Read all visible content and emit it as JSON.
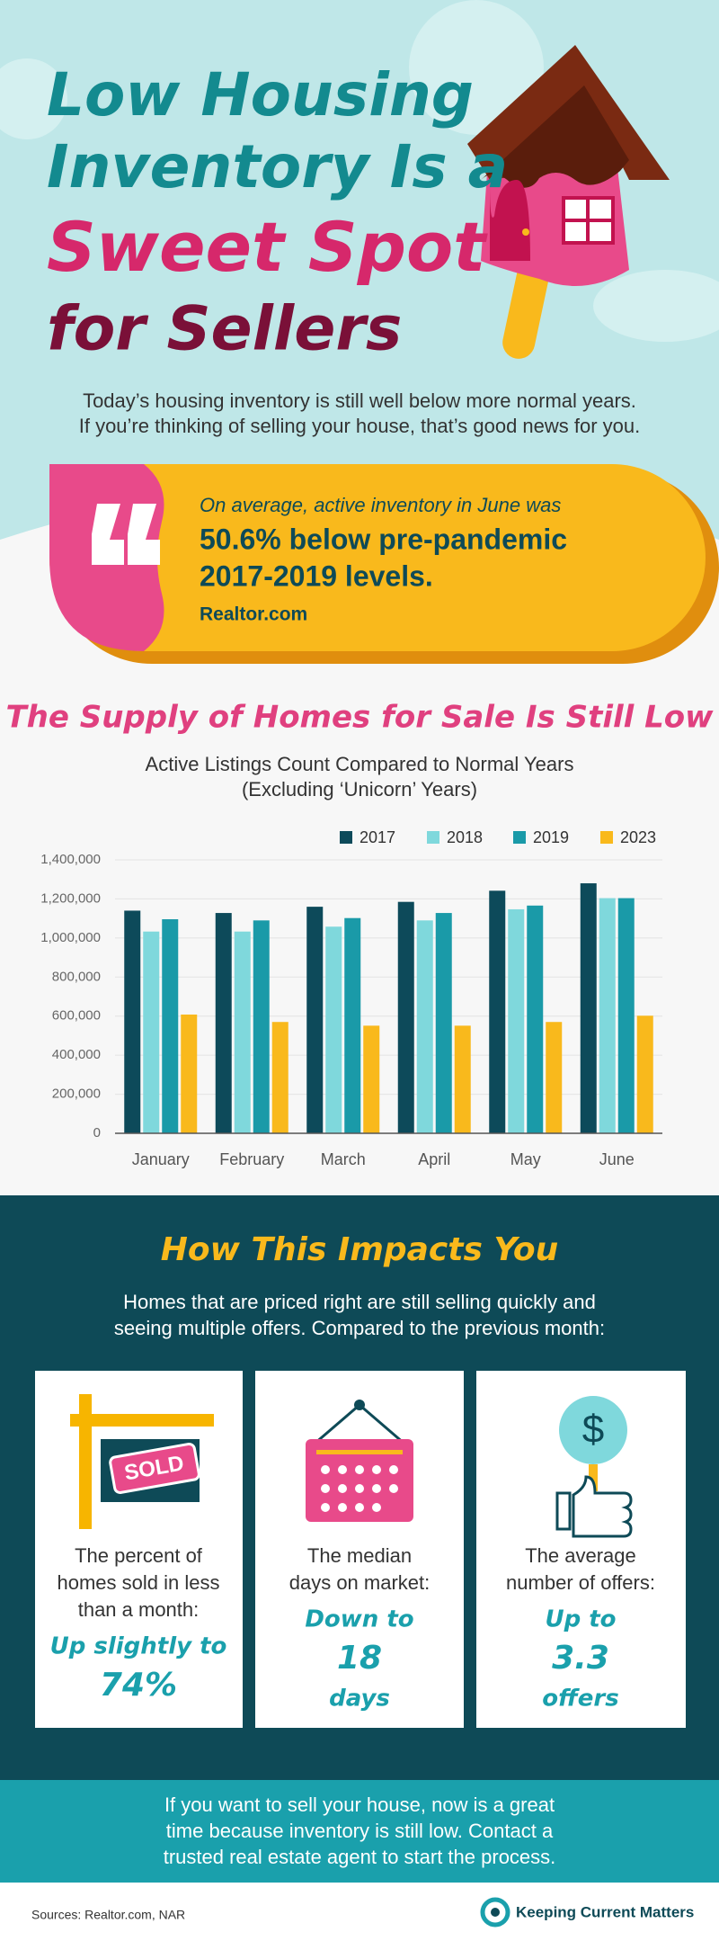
{
  "header": {
    "title_lines": [
      "Low Housing",
      "Inventory Is a",
      "Sweet Spot",
      "for Sellers"
    ],
    "intro_lines": [
      "Today’s housing inventory is still well below more normal years.",
      "If you’re thinking of selling your house, that’s good news for you."
    ]
  },
  "quote": {
    "text": "On average, active inventory in June was",
    "highlight_lines": [
      "50.6% below pre-pandemic",
      "2017-2019 levels."
    ],
    "source": "Realtor.com"
  },
  "chart_data": {
    "type": "bar",
    "title": "The Supply of Homes for Sale Is Still Low",
    "subtitle": "Active Listings Count Compared to Normal Years",
    "subtitle_note": "(Excluding ‘Unicorn’ Years)",
    "categories": [
      "January",
      "February",
      "March",
      "April",
      "May",
      "June"
    ],
    "series": [
      {
        "name": "2017",
        "color": "#0d4a5a",
        "values": [
          1140000,
          1128000,
          1160000,
          1185000,
          1242000,
          1280000
        ]
      },
      {
        "name": "2018",
        "color": "#7fd8dc",
        "values": [
          1033000,
          1033000,
          1058000,
          1090000,
          1147000,
          1204000
        ]
      },
      {
        "name": "2019",
        "color": "#1a9aa8",
        "values": [
          1096000,
          1090000,
          1102000,
          1128000,
          1166000,
          1204000
        ]
      },
      {
        "name": "2023",
        "color": "#f9b91c",
        "values": [
          608000,
          570000,
          551000,
          551000,
          570000,
          602000
        ]
      }
    ],
    "ylim": [
      0,
      1400000
    ],
    "yticks": [
      0,
      {
        "value": 200000,
        "label": "200,000"
      },
      {
        "value": 400000,
        "label": "400,000"
      },
      {
        "value": 600000,
        "label": "600,000"
      },
      {
        "value": 800000,
        "label": "800,000"
      },
      {
        "value": 1000000,
        "label": "1,000,000"
      },
      {
        "value": 1200000,
        "label": "1,200,000"
      },
      {
        "value": 1400000,
        "label": "1,400,000"
      }
    ],
    "grid": true,
    "legend": "top-right"
  },
  "impacts": {
    "heading": "How This Impacts You",
    "intro_lines": [
      "Homes that are priced right are still selling quickly and",
      "seeing multiple offers. Compared to the previous month:"
    ],
    "cards": [
      {
        "icon_text": "SOLD",
        "label_lines": [
          "The percent of",
          "homes sold in less",
          "than a month:"
        ],
        "value_lines": [
          "Up slightly to",
          "74%"
        ]
      },
      {
        "label_lines": [
          "The median",
          "days on market:"
        ],
        "value_lines": [
          "Down to",
          "18",
          "days"
        ]
      },
      {
        "icon_text": "$",
        "label_lines": [
          "The average",
          "number of offers:"
        ],
        "value_lines": [
          "Up to",
          "3.3",
          "offers"
        ]
      }
    ]
  },
  "cta_lines": [
    "If you want to sell your house, now is a great",
    "time because inventory is still low. Contact a",
    "trusted real estate agent to start the process."
  ],
  "footer": {
    "sources": "Sources: Realtor.com, NAR",
    "logo": "Keeping Current Matters"
  }
}
